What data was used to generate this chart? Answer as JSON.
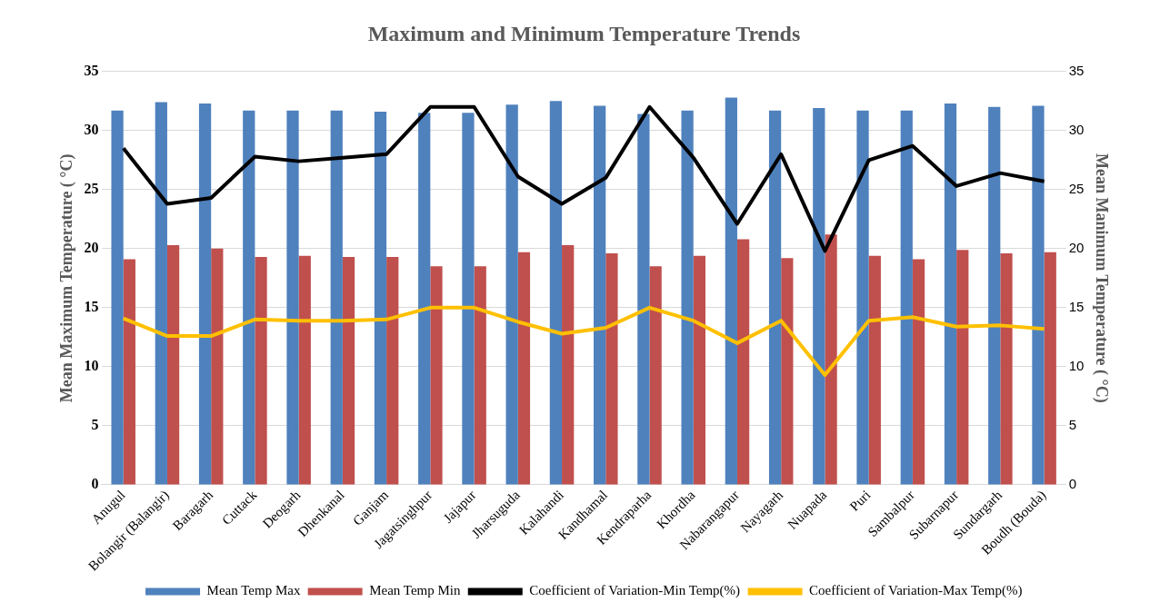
{
  "chart_data": {
    "type": "bar",
    "title": "Maximum and Minimum Temperature Trends",
    "ylabel": "Mean Maximum Temperature ( °C)",
    "y2label": "Mean Manimum Temperature ( °C)",
    "categories": [
      "Anugul",
      "Bolangir (Balangir)",
      "Baragarh",
      "Cuttack",
      "Deogarh",
      "Dhenkanal",
      "Ganjam",
      "Jagatsinghpur",
      "Jajapur",
      "Jharsuguda",
      "Kalahandi",
      "Kandhamal",
      "Kendraparha",
      "Khordha",
      "Nabarangapur",
      "Nayagarh",
      "Nuapada",
      "Puri",
      "Sambalpur",
      "Subarnapur",
      "Sundargarh",
      "Boudh (Bouda)"
    ],
    "series": [
      {
        "name": "Mean Temp Max",
        "color": "#4f81bd",
        "values": [
          31.7,
          32.4,
          32.3,
          31.7,
          31.7,
          31.7,
          31.6,
          31.5,
          31.5,
          32.2,
          32.5,
          32.1,
          31.4,
          31.7,
          32.8,
          31.7,
          31.9,
          31.7,
          31.7,
          32.3,
          32.0,
          32.1
        ]
      },
      {
        "name": "Mean Temp Min",
        "color": "#c0504d",
        "values": [
          19.1,
          20.3,
          20.0,
          19.3,
          19.4,
          19.3,
          19.3,
          18.5,
          18.5,
          19.7,
          20.3,
          19.6,
          18.5,
          19.4,
          20.8,
          19.2,
          21.2,
          19.4,
          19.1,
          19.9,
          19.6,
          19.7
        ]
      },
      {
        "name": "Coefficient of Variation-Min Temp(%)",
        "type": "line",
        "axis": "y2",
        "color": "#000000",
        "values": [
          28.5,
          23.8,
          24.3,
          27.8,
          27.4,
          27.7,
          28.0,
          32.0,
          32.0,
          26.1,
          23.8,
          26.0,
          32.0,
          27.7,
          22.1,
          28.0,
          19.8,
          27.5,
          28.7,
          25.3,
          26.4,
          25.7
        ]
      },
      {
        "name": "Coefficient of Variation-Max Temp(%)",
        "type": "line",
        "axis": "y2",
        "color": "#ffc000",
        "values": [
          14.1,
          12.6,
          12.6,
          14.0,
          13.9,
          13.9,
          14.0,
          15.0,
          15.0,
          13.8,
          12.8,
          13.3,
          15.0,
          13.9,
          12.0,
          13.9,
          9.3,
          13.9,
          14.2,
          13.4,
          13.5,
          13.2
        ]
      }
    ],
    "ylim": [
      0,
      35
    ],
    "yticks": [
      0,
      5,
      10,
      15,
      20,
      25,
      30,
      35
    ],
    "y2lim": [
      0,
      35
    ],
    "y2ticks": [
      0,
      5,
      10,
      15,
      20,
      25,
      30,
      35
    ],
    "grid": "y",
    "legend": "bottom",
    "marker": "none",
    "line_style": "solid"
  }
}
